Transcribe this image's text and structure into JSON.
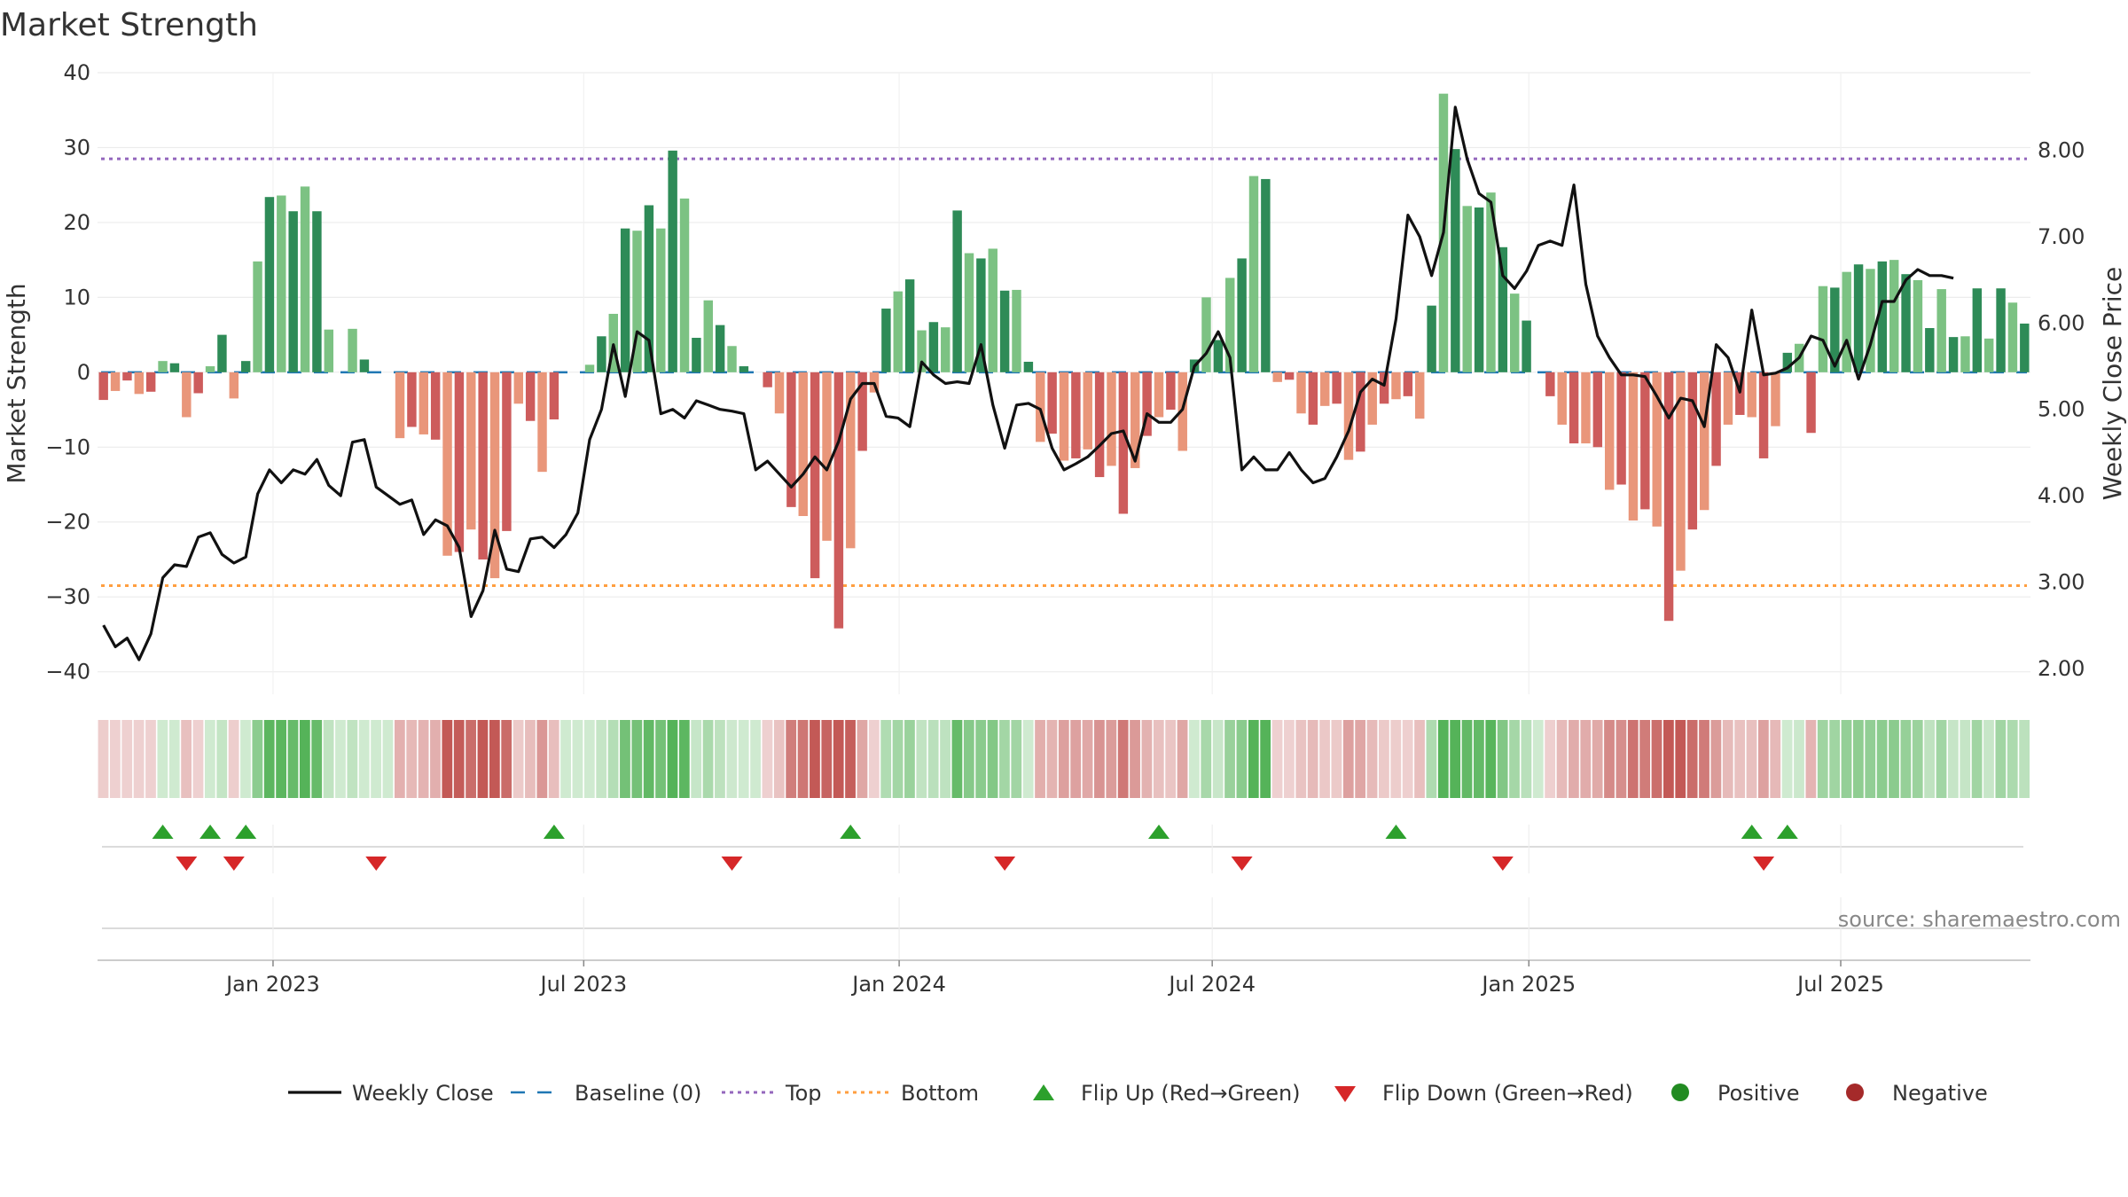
{
  "chart_data": {
    "type": "bar",
    "title": "Market Strength",
    "ylabel": "Market Strength",
    "y2label": "Weekly Close Price",
    "ylim": [
      -43,
      40
    ],
    "y2lim": [
      1.7,
      8.9
    ],
    "yticks": [
      40,
      30,
      20,
      10,
      0,
      -10,
      -20,
      -30,
      -40
    ],
    "ytick_labels": [
      "40",
      "30",
      "20",
      "10",
      "0",
      "−10",
      "−20",
      "−30",
      "−40"
    ],
    "y2ticks": [
      8.0,
      7.0,
      6.0,
      5.0,
      4.0,
      3.0,
      2.0
    ],
    "y2tick_labels": [
      "8.00",
      "7.00",
      "6.00",
      "5.00",
      "4.00",
      "3.00",
      "2.00"
    ],
    "x_weeks": 159,
    "xticks": [
      {
        "label": "Jan 2023",
        "week": 14.8
      },
      {
        "label": "Jul 2023",
        "week": 41.0
      },
      {
        "label": "Jan 2024",
        "week": 67.6
      },
      {
        "label": "Jul 2024",
        "week": 94.0
      },
      {
        "label": "Jan 2025",
        "week": 120.7
      },
      {
        "label": "Jul 2025",
        "week": 147.0
      }
    ],
    "top_level": 28.5,
    "bottom_level": -28.5,
    "strength": [
      -3.7,
      -2.5,
      -1.1,
      -2.9,
      -2.6,
      1.5,
      1.2,
      -6,
      -2.8,
      0.8,
      5,
      -3.5,
      1.5,
      14.8,
      23.4,
      23.6,
      21.5,
      24.8,
      21.5,
      5.7,
      0,
      5.8,
      1.7,
      0,
      0,
      -8.8,
      -7.3,
      -8.3,
      -9,
      -24.5,
      -24,
      -21,
      -25,
      -27.5,
      -21.2,
      -4.2,
      -6.5,
      -13.3,
      -6.3,
      0,
      0,
      1,
      4.8,
      7.8,
      19.2,
      18.9,
      22.3,
      19.2,
      29.6,
      23.2,
      4.6,
      9.6,
      6.3,
      3.5,
      0.8,
      0,
      -2,
      -5.5,
      -18,
      -19.2,
      -27.5,
      -22.5,
      -34.2,
      -23.5,
      -10.5,
      -2.7,
      8.5,
      10.8,
      12.4,
      5.6,
      6.7,
      6,
      21.6,
      15.9,
      15.2,
      16.5,
      10.9,
      11,
      1.4,
      -9.3,
      -8.2,
      -11.8,
      -11.5,
      -10.3,
      -14,
      -12.5,
      -18.9,
      -12.8,
      -8.5,
      -6,
      -5,
      -10.5,
      1.7,
      10,
      4.3,
      12.6,
      15.2,
      26.2,
      25.8,
      -1.3,
      -1,
      -5.5,
      -7,
      -4.5,
      -4.2,
      -11.7,
      -10.6,
      -7,
      -4.2,
      -3.6,
      -3.2,
      -6.2,
      8.9,
      37.2,
      29.8,
      22.2,
      22,
      24,
      16.7,
      10.5,
      6.9,
      0,
      -3.2,
      -7,
      -9.5,
      -9.5,
      -10,
      -15.7,
      -15,
      -19.8,
      -18.3,
      -20.6,
      -33.2,
      -26.5,
      -21,
      -18.4,
      -12.5,
      -7,
      -5.7,
      -6,
      -11.5,
      -7.2,
      2.6,
      3.8,
      -8.1,
      11.5,
      11.3,
      13.4,
      14.4,
      13.8,
      14.8,
      15,
      13.1,
      12.3,
      5.9,
      11.1,
      4.7,
      4.8,
      11.2,
      4.5,
      11.2,
      9.3,
      6.5
    ],
    "price": [
      2.5,
      2.25,
      2.35,
      2.1,
      2.4,
      3.05,
      3.2,
      3.18,
      3.52,
      3.57,
      3.32,
      3.22,
      3.29,
      4.02,
      4.3,
      4.15,
      4.3,
      4.25,
      4.42,
      4.12,
      4.0,
      4.62,
      4.65,
      4.1,
      4.0,
      3.9,
      3.95,
      3.55,
      3.72,
      3.65,
      3.4,
      2.6,
      2.9,
      3.6,
      3.15,
      3.12,
      3.5,
      3.52,
      3.4,
      3.55,
      3.8,
      4.65,
      5.0,
      5.75,
      5.15,
      5.9,
      5.8,
      4.95,
      5.0,
      4.9,
      5.1,
      5.05,
      5.0,
      4.98,
      4.95,
      4.3,
      4.4,
      4.25,
      4.1,
      4.25,
      4.45,
      4.3,
      4.63,
      5.12,
      5.3,
      5.3,
      4.92,
      4.9,
      4.8,
      5.55,
      5.4,
      5.3,
      5.32,
      5.3,
      5.75,
      5.05,
      4.55,
      5.05,
      5.07,
      5.0,
      4.55,
      4.3,
      4.37,
      4.45,
      4.58,
      4.72,
      4.75,
      4.4,
      4.95,
      4.85,
      4.85,
      5.0,
      5.5,
      5.65,
      5.9,
      5.6,
      4.3,
      4.45,
      4.3,
      4.3,
      4.5,
      4.3,
      4.15,
      4.2,
      4.45,
      4.75,
      5.2,
      5.35,
      5.28,
      6.05,
      7.25,
      7.0,
      6.55,
      7.05,
      8.5,
      7.9,
      7.5,
      7.4,
      6.55,
      6.4,
      6.6,
      6.9,
      6.95,
      6.9,
      7.6,
      6.45,
      5.85,
      5.6,
      5.4,
      5.4,
      5.38,
      5.15,
      4.9,
      5.13,
      5.1,
      4.8,
      5.75,
      5.6,
      5.2,
      6.15,
      5.4,
      5.42,
      5.48,
      5.6,
      5.85,
      5.8,
      5.5,
      5.8,
      5.35,
      5.75,
      6.25,
      6.25,
      6.5,
      6.62,
      6.55,
      6.55,
      6.52
    ],
    "flip_up_weeks": [
      5,
      9,
      12,
      38,
      63,
      89,
      109,
      139,
      142
    ],
    "flip_down_weeks": [
      7,
      11,
      23,
      53,
      76,
      96,
      118,
      140
    ],
    "colors": {
      "pos_strong": "#2e8b57",
      "pos_light": "#7cc283",
      "neg_strong": "#cd5c5c",
      "neg_light": "#e9967a",
      "line": "#111111",
      "baseline": "#1f77b4",
      "top": "#9467bd",
      "bottom": "#ff9f40",
      "flip_up": "#2ca02c",
      "flip_down": "#d62728",
      "positive": "#228b22",
      "negative": "#a52a2a"
    },
    "legend": [
      {
        "kind": "line",
        "label": "Weekly Close"
      },
      {
        "kind": "dash",
        "label": "Baseline (0)"
      },
      {
        "kind": "dotpurple",
        "label": "Top"
      },
      {
        "kind": "dotorange",
        "label": "Bottom"
      },
      {
        "kind": "up",
        "label": "Flip Up (Red→Green)"
      },
      {
        "kind": "down",
        "label": "Flip Down (Green→Red)"
      },
      {
        "kind": "pos",
        "label": "Positive"
      },
      {
        "kind": "neg",
        "label": "Negative"
      }
    ],
    "source": "source: sharemaestro.com"
  }
}
